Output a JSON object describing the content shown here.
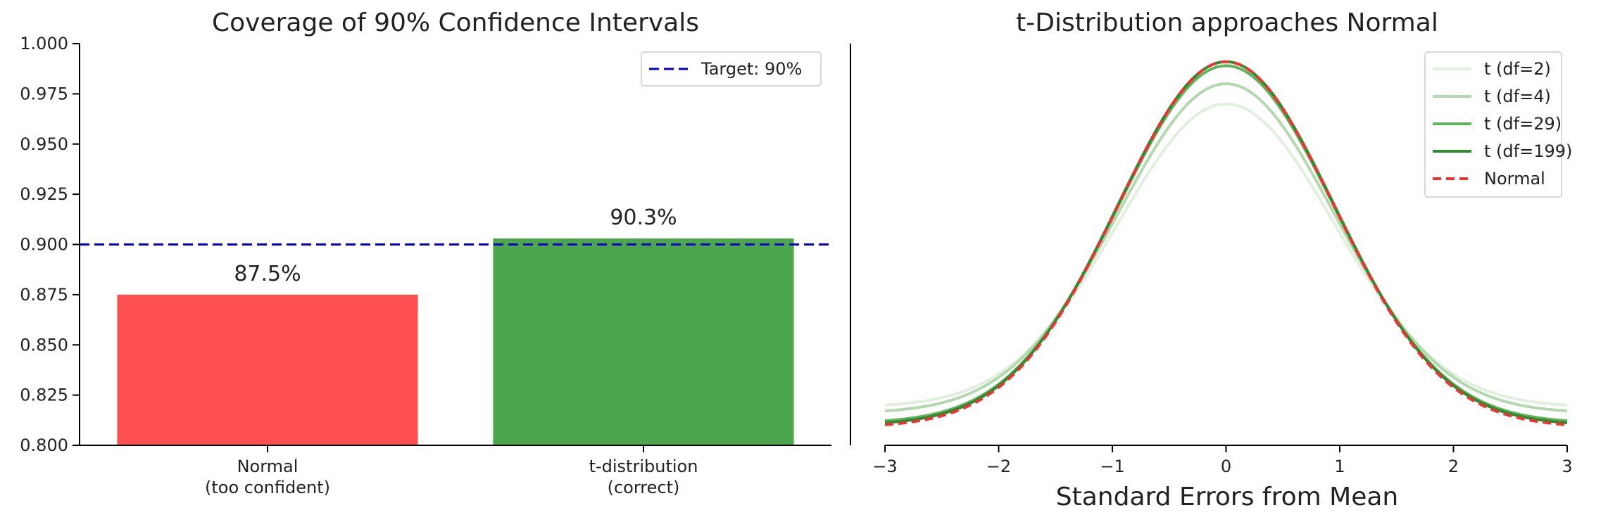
{
  "chart_data": [
    {
      "type": "bar",
      "title": "Coverage of 90% Confidence Intervals",
      "categories": [
        "Normal\n(too confident)",
        "t-distribution\n(correct)"
      ],
      "values": [
        0.875,
        0.903
      ],
      "data_labels": [
        "87.5%",
        "90.3%"
      ],
      "colors": [
        "#ff4f4f",
        "#4ca64c"
      ],
      "ylim": [
        0.8,
        1.0
      ],
      "yticks": [
        "0.800",
        "0.825",
        "0.850",
        "0.875",
        "0.900",
        "0.925",
        "0.950",
        "0.975",
        "1.000"
      ],
      "reference_line": {
        "value": 0.9,
        "label": "Target: 90%",
        "color": "#0000cc",
        "style": "dashed"
      },
      "legend": {
        "position": "top-right",
        "entries": [
          "Target: 90%"
        ]
      },
      "xlabel": "",
      "ylabel": "",
      "grid": false
    },
    {
      "type": "line",
      "title": "t-Distribution approaches Normal",
      "xlabel": "Standard Errors from Mean",
      "ylabel": "",
      "xlim": [
        -3,
        3
      ],
      "xticks": [
        "−3",
        "−2",
        "−1",
        "0",
        "1",
        "2",
        "3"
      ],
      "series": [
        {
          "name": "t (df=2)",
          "peak": 0.97,
          "tail": 0.819,
          "color": "#e0f0dc"
        },
        {
          "name": "t (df=4)",
          "peak": 0.98,
          "tail": 0.816,
          "color": "#b2d8ad"
        },
        {
          "name": "t (df=29)",
          "peak": 0.989,
          "tail": 0.811,
          "color": "#5fb35a"
        },
        {
          "name": "t (df=199)",
          "peak": 0.991,
          "tail": 0.81,
          "color": "#2e8b2e"
        },
        {
          "name": "Normal",
          "peak": 0.991,
          "tail": 0.809,
          "color": "#ee3333",
          "style": "dashed"
        }
      ],
      "legend": {
        "position": "top-right"
      },
      "grid": false
    }
  ]
}
